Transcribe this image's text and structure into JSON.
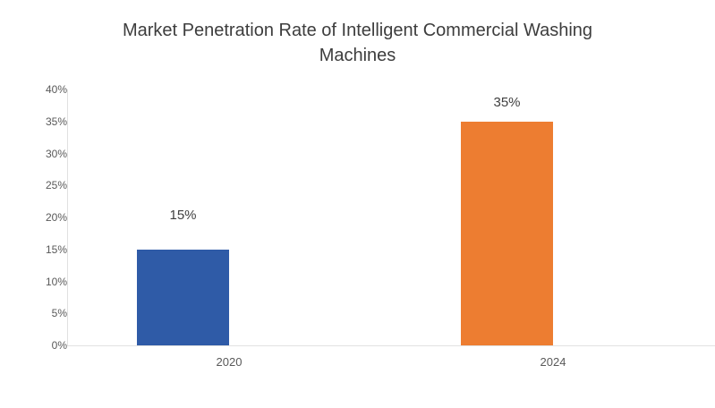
{
  "title": "Market Penetration Rate of Intelligent Commercial Washing Machines",
  "chart_data": {
    "type": "bar",
    "title": "Market Penetration Rate of Intelligent Commercial Washing Machines",
    "categories": [
      "2020",
      "2024"
    ],
    "values": [
      15,
      35
    ],
    "value_labels": [
      "15%",
      "35%"
    ],
    "bar_colors": [
      "#2f5ba7",
      "#ed7d31"
    ],
    "xlabel": "",
    "ylabel": "",
    "ylim": [
      0,
      40
    ],
    "ytick_step": 5,
    "ytick_labels": [
      "0%",
      "5%",
      "10%",
      "15%",
      "20%",
      "25%",
      "30%",
      "35%",
      "40%"
    ],
    "grid": false,
    "legend_position": "none",
    "colors": {
      "background": "#ffffff",
      "axis_line": "#e1e1e1",
      "title_text": "#3d3d3d",
      "tick_text": "#595959",
      "value_label_text": "#404040"
    }
  }
}
